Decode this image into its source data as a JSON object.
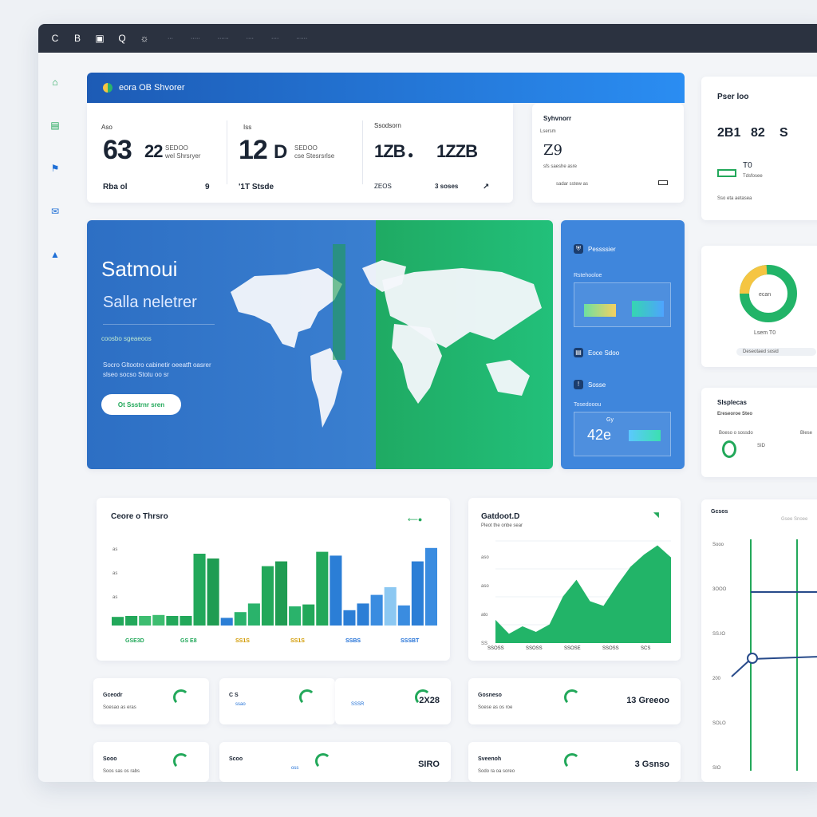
{
  "topbar": {
    "icons": [
      "refresh-icon",
      "bookmark-icon",
      "window-icon",
      "user-icon",
      "settings-icon"
    ],
    "icon_glyphs": [
      "C",
      "B",
      "▣",
      "Q",
      "☼"
    ],
    "menu": [
      "···",
      "·····",
      "······",
      "····",
      "····",
      "······"
    ]
  },
  "sidebar": {
    "icons": [
      "home-icon",
      "document-icon",
      "users-icon",
      "inbox-icon",
      "chart-icon"
    ],
    "glyphs": [
      "⌂",
      "▤",
      "⚑",
      "✉",
      "▲"
    ]
  },
  "stats_header": {
    "title": "eora OB Shvorer"
  },
  "stats": [
    {
      "label": "Aso",
      "value": "63",
      "accent": "22",
      "note1": "SEDOO",
      "note2": "wel Shrsryer",
      "footer": "Rba ol",
      "footer_badge": "9"
    },
    {
      "label": "Iss",
      "value": "12",
      "accent": "D",
      "note1": "SEDOO",
      "note2": "cse Stesrsrlse",
      "footer": "'1T Stsde"
    },
    {
      "label": "Ssodsorn",
      "value": "1ZB",
      "accent": "●",
      "value2": "1ZZB",
      "footer": "ZEOS",
      "footer2": "3 soses"
    }
  ],
  "info_card": {
    "title": "Syhvnorr",
    "sub": "Lsersm",
    "value": "Z9",
    "desc": "sfs saeshe  asre",
    "foot": "sadar sstew as"
  },
  "hero": {
    "title": "Satmoui",
    "subtitle": "Salla neletrer",
    "badge": "coosbo sgeaeoos",
    "text": "Socro Gltootro cabinetir oeeatft oasrer slseo socso Stotu oo sr",
    "button": "Ot Ssstrnr sren"
  },
  "blue_panel": {
    "items": [
      {
        "icon": "shield",
        "label": "Pessssier",
        "sub": "Rstehooloe"
      },
      {
        "icon": "doc",
        "label": "Eoce Sdoo"
      },
      {
        "icon": "alert",
        "label": "Sosse",
        "sub": "Tosedooou"
      }
    ],
    "kpi": "42e",
    "kpi_small": "Gy"
  },
  "right_cards": {
    "card1": {
      "title": "Pser loo",
      "v1": "2B1",
      "v2": "82",
      "v3": "S",
      "v4": "T0",
      "desc": "Tdsfosee",
      "foot": "Sso eta aetasea"
    },
    "card2": {
      "ring_label": "ecan",
      "sub": "Lsem T0",
      "foot": "Deseotaed sosid"
    },
    "card3": {
      "title": "Slsplecas",
      "sub": "Ereseoroe Steo",
      "note": "Boeso o sossdo",
      "val": "SID",
      "note2": "Blese"
    },
    "card4": {
      "title": "Gcsos",
      "sub": "Gsee Snoee",
      "ax": [
        "Sooo",
        "3OOO",
        "SS.IO",
        "200",
        "SOLO",
        "SIO"
      ]
    }
  },
  "chart_card": {
    "title": "Ceore o Thrsro",
    "y_ticks": [
      "as",
      "as",
      "as",
      "ao"
    ],
    "x_labels": [
      {
        "t": "GSE3D",
        "c": "#22a85a"
      },
      {
        "t": "GS E8",
        "c": "#22a85a"
      },
      {
        "t": "SS1S",
        "c": "#d19a00"
      },
      {
        "t": "SS1S",
        "c": "#d19a00"
      },
      {
        "t": "SSBS",
        "c": "#1f6fd6"
      },
      {
        "t": "SSSBT",
        "c": "#1f6fd6"
      }
    ]
  },
  "chart_data": [
    {
      "type": "bar",
      "categories": [
        "1",
        "2",
        "3",
        "4",
        "5",
        "6",
        "7",
        "8",
        "9",
        "10",
        "11",
        "12",
        "13",
        "14",
        "15",
        "16",
        "17",
        "18",
        "19",
        "20",
        "21",
        "22",
        "23",
        "24"
      ],
      "values": [
        9,
        10,
        10,
        11,
        10,
        10,
        75,
        70,
        8,
        14,
        23,
        62,
        67,
        20,
        22,
        77,
        73,
        16,
        23,
        32,
        40,
        21,
        67,
        81
      ],
      "colors": [
        "#22a85a",
        "#22a85a",
        "#3dbd70",
        "#3dbd70",
        "#22a85a",
        "#22a85a",
        "#22a85a",
        "#1f9c52",
        "#2b7ed6",
        "#2ab36b",
        "#2ab36b",
        "#22a85a",
        "#1f9c52",
        "#2ab36b",
        "#22a85a",
        "#22a85a",
        "#2b7ed6",
        "#2b7ed6",
        "#2b7ed6",
        "#3a8ce0",
        "#8cc8f2",
        "#3a8ce0",
        "#2b7ed6",
        "#3a8ce0"
      ],
      "ylim": [
        0,
        100
      ]
    },
    {
      "type": "area",
      "title": "Gatdoot.D",
      "subtitle": "Pleot the onbe sear",
      "x": [
        1,
        2,
        3,
        4,
        5,
        6,
        7,
        8,
        9,
        10,
        11,
        12,
        13,
        14
      ],
      "values": [
        25,
        10,
        18,
        12,
        20,
        50,
        68,
        45,
        40,
        62,
        82,
        95,
        105,
        92
      ],
      "ylim": [
        0,
        120
      ],
      "y_ticks": [
        "aso",
        "aso",
        "ato",
        "SS"
      ],
      "x_labels": [
        "SSOSS",
        "SSOSS",
        "SSOSE",
        "SSOSS",
        "SCS"
      ]
    },
    {
      "type": "line",
      "title": "Gcsos",
      "x": [
        0,
        1,
        2,
        3
      ],
      "values": [
        5,
        50,
        70,
        78
      ]
    }
  ],
  "small_cards": [
    {
      "title": "Gceodr",
      "sub": "Soesao as eras"
    },
    {
      "title": "C S",
      "v1": "ssao",
      "v2": "ssa8s",
      "value": ""
    },
    {
      "title": "",
      "value": "2X28",
      "v1": "SSSR"
    },
    {
      "title": "Gosneso",
      "sub": "Soese as os roe",
      "value": "13 Greeoo"
    },
    {
      "title": "Sooo",
      "sub": "Soos sas os rabs"
    },
    {
      "title": "Scoo",
      "value": "SIRO",
      "v1": "oss"
    },
    {
      "title": "Sveenoh",
      "sub": "Sodo ra oa soreo",
      "value": "3 Gsnso"
    }
  ]
}
